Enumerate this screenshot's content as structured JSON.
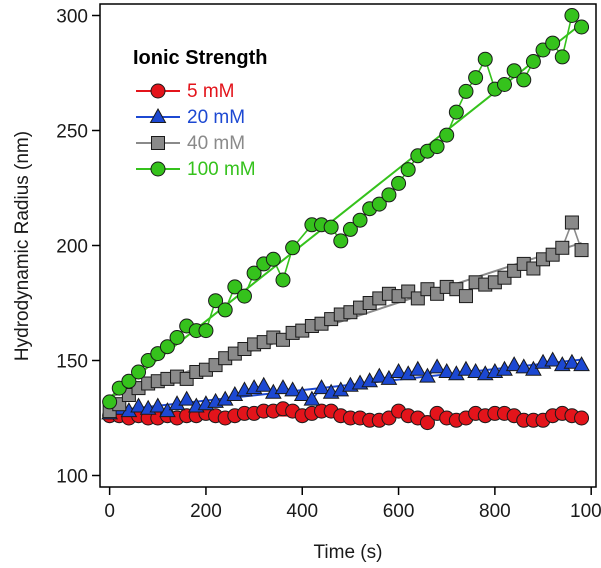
{
  "chart_data": {
    "type": "scatter",
    "xlabel": "Time (s)",
    "ylabel": "Hydrodynamic Radius (nm)",
    "xlim": [
      -20,
      1010
    ],
    "ylim": [
      95,
      305
    ],
    "xticks": [
      "0",
      "200",
      "400",
      "600",
      "800",
      "1000"
    ],
    "yticks": [
      "100",
      "150",
      "200",
      "250",
      "300"
    ],
    "legend_title": "Ionic Strength",
    "legend_position": "top-left",
    "grid": false,
    "series": [
      {
        "name": "5 mM",
        "marker": "circle",
        "color": "#e3141b",
        "x": [
          0,
          20,
          40,
          60,
          80,
          100,
          120,
          140,
          160,
          180,
          200,
          220,
          240,
          260,
          280,
          300,
          320,
          340,
          360,
          380,
          400,
          420,
          440,
          460,
          480,
          500,
          520,
          540,
          560,
          580,
          600,
          620,
          640,
          660,
          680,
          700,
          720,
          740,
          760,
          780,
          800,
          820,
          840,
          860,
          880,
          900,
          920,
          940,
          960,
          980
        ],
        "y": [
          126,
          126,
          125,
          126,
          125,
          125,
          126,
          125,
          126,
          126,
          127,
          126,
          125,
          126,
          127,
          127,
          128,
          128,
          129,
          128,
          126,
          127,
          128,
          128,
          126,
          125,
          125,
          124,
          124,
          125,
          128,
          126,
          125,
          123,
          127,
          125,
          124,
          125,
          127,
          126,
          127,
          127,
          126,
          124,
          124,
          124,
          126,
          127,
          126,
          125
        ]
      },
      {
        "name": "20 mM",
        "marker": "triangle",
        "color": "#1c48d2",
        "x": [
          0,
          20,
          40,
          60,
          80,
          100,
          120,
          140,
          160,
          180,
          200,
          220,
          240,
          260,
          280,
          300,
          320,
          340,
          360,
          380,
          400,
          420,
          440,
          460,
          480,
          500,
          520,
          540,
          560,
          580,
          600,
          620,
          640,
          660,
          680,
          700,
          720,
          740,
          760,
          780,
          800,
          820,
          840,
          860,
          880,
          900,
          920,
          940,
          960,
          980
        ],
        "y": [
          127,
          129,
          128,
          130,
          129,
          130,
          128,
          131,
          133,
          130,
          131,
          132,
          133,
          135,
          137,
          138,
          139,
          136,
          138,
          137,
          135,
          133,
          138,
          136,
          137,
          139,
          140,
          141,
          143,
          142,
          145,
          144,
          146,
          143,
          147,
          145,
          144,
          146,
          145,
          144,
          145,
          146,
          148,
          147,
          146,
          149,
          150,
          148,
          149,
          148
        ]
      },
      {
        "name": "40 mM",
        "marker": "square",
        "color": "#8a8a8a",
        "x": [
          0,
          20,
          40,
          60,
          80,
          100,
          120,
          140,
          160,
          180,
          200,
          220,
          240,
          260,
          280,
          300,
          320,
          340,
          360,
          380,
          400,
          420,
          440,
          460,
          480,
          500,
          520,
          540,
          560,
          580,
          600,
          620,
          640,
          660,
          680,
          700,
          720,
          740,
          760,
          780,
          800,
          820,
          840,
          860,
          880,
          900,
          920,
          940,
          960,
          980
        ],
        "y": [
          128,
          131,
          135,
          138,
          140,
          141,
          142,
          143,
          142,
          145,
          146,
          148,
          151,
          153,
          155,
          157,
          158,
          160,
          159,
          162,
          163,
          165,
          166,
          168,
          170,
          171,
          173,
          175,
          177,
          179,
          178,
          180,
          177,
          181,
          179,
          182,
          181,
          178,
          184,
          183,
          184,
          186,
          189,
          192,
          190,
          194,
          196,
          199,
          210,
          198
        ]
      },
      {
        "name": "100 mM",
        "marker": "circle",
        "color": "#35c21c",
        "x": [
          0,
          20,
          40,
          60,
          80,
          100,
          120,
          140,
          160,
          180,
          200,
          220,
          240,
          260,
          280,
          300,
          320,
          340,
          360,
          380,
          420,
          440,
          460,
          480,
          500,
          520,
          540,
          560,
          580,
          600,
          620,
          640,
          660,
          680,
          700,
          720,
          740,
          760,
          780,
          800,
          820,
          840,
          860,
          880,
          900,
          920,
          940,
          960,
          980
        ],
        "y": [
          132,
          138,
          141,
          145,
          150,
          153,
          156,
          160,
          165,
          163,
          163,
          176,
          172,
          182,
          178,
          188,
          192,
          194,
          185,
          199,
          209,
          209,
          208,
          202,
          207,
          211,
          216,
          218,
          222,
          227,
          233,
          239,
          241,
          243,
          248,
          258,
          267,
          273,
          281,
          268,
          270,
          276,
          272,
          280,
          285,
          288,
          282,
          300,
          295
        ]
      }
    ]
  }
}
